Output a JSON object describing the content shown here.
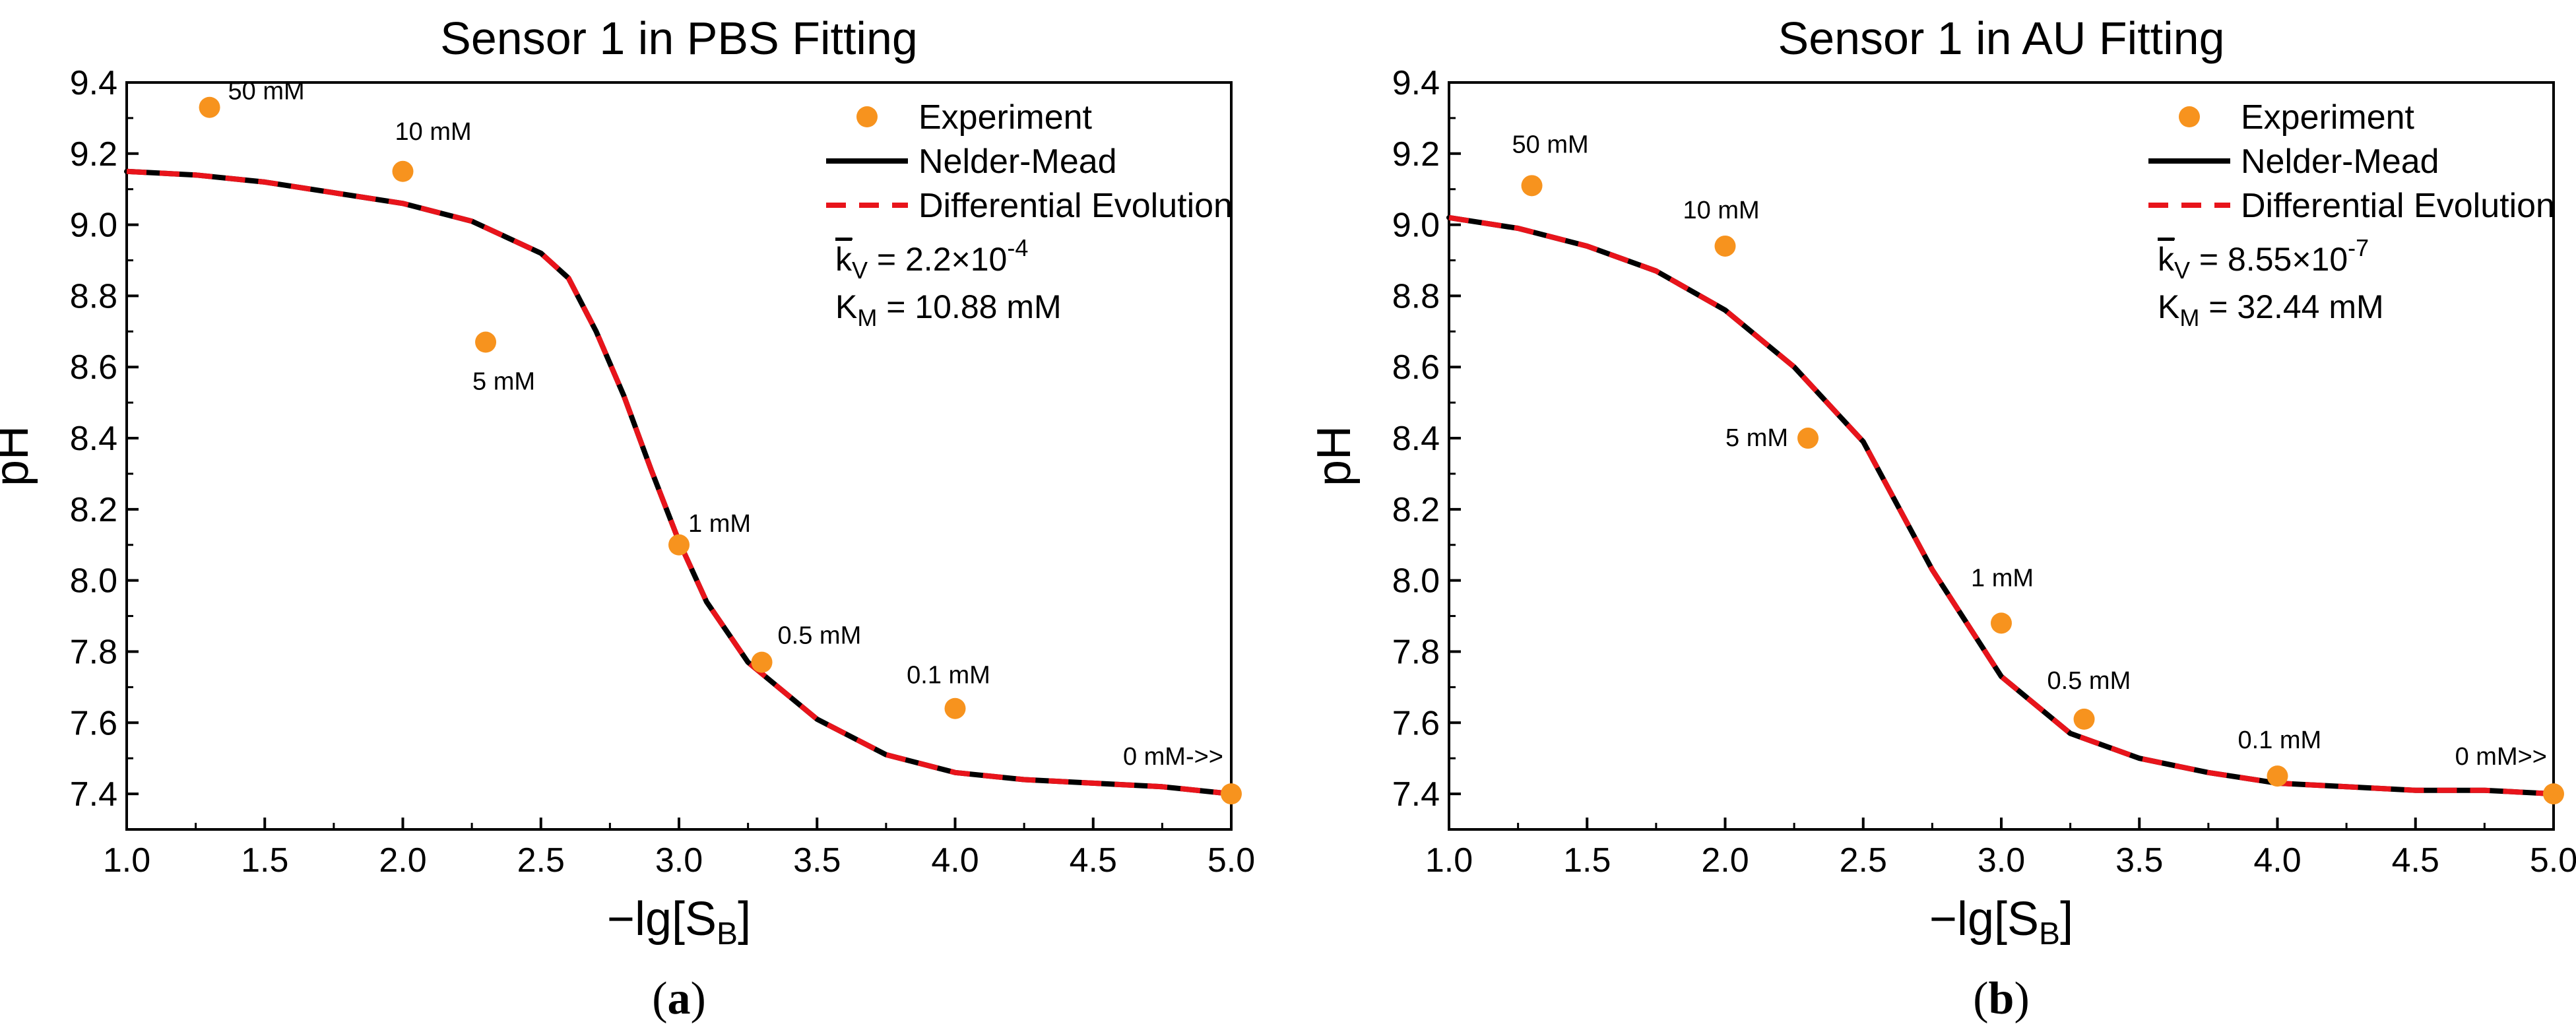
{
  "colors": {
    "experiment": "#F7931E",
    "nelder_mead": "#000000",
    "differential_evolution": "#E8141B"
  },
  "chart_data": [
    {
      "type": "scatter",
      "title": "Sensor 1 in PBS Fitting",
      "xlabel": "−lg[S",
      "xlabel_sub": "B",
      "xlabel_close": "]",
      "ylabel": "pH",
      "xlim": [
        1.0,
        5.0
      ],
      "ylim": [
        7.3,
        9.4
      ],
      "x_ticks": [
        "1.0",
        "1.5",
        "2.0",
        "2.5",
        "3.0",
        "3.5",
        "4.0",
        "4.5",
        "5.0"
      ],
      "y_ticks": [
        "7.4",
        "7.6",
        "7.8",
        "8.0",
        "8.2",
        "8.4",
        "8.6",
        "8.8",
        "9.0",
        "9.2",
        "9.4"
      ],
      "legend": [
        "Experiment",
        "Nelder-Mead",
        "Differential Evolution"
      ],
      "legend_position": "top-right",
      "annotation_kv_prefix": "k",
      "annotation_kv_sub": "V",
      "annotation_kv_value": " = 2.2×10",
      "annotation_kv_exp": "-4",
      "annotation_km_prefix": "K",
      "annotation_km_sub": "M",
      "annotation_km_value": " = 10.88 mM",
      "caption_open": "(",
      "caption_letter": "a",
      "caption_close": ")",
      "experiment": {
        "x": [
          1.3,
          2.0,
          2.3,
          3.0,
          3.3,
          4.0,
          5.0
        ],
        "y": [
          9.33,
          9.15,
          8.67,
          8.1,
          7.77,
          7.64,
          7.4
        ],
        "labels": [
          "50 mM",
          "10 mM",
          "5 mM",
          "1 mM",
          "0.5 mM",
          "0.1 mM",
          "0 mM->>"
        ]
      },
      "fit": {
        "x": [
          1.0,
          1.25,
          1.5,
          1.75,
          2.0,
          2.25,
          2.5,
          2.6,
          2.7,
          2.8,
          2.9,
          3.0,
          3.1,
          3.25,
          3.5,
          3.75,
          4.0,
          4.25,
          4.5,
          4.75,
          5.0
        ],
        "y": [
          9.15,
          9.14,
          9.12,
          9.09,
          9.06,
          9.01,
          8.92,
          8.85,
          8.7,
          8.52,
          8.31,
          8.11,
          7.94,
          7.77,
          7.61,
          7.51,
          7.46,
          7.44,
          7.43,
          7.42,
          7.4
        ]
      }
    },
    {
      "type": "scatter",
      "title": "Sensor 1 in AU Fitting",
      "xlabel": "−lg[S",
      "xlabel_sub": "B",
      "xlabel_close": "]",
      "ylabel": "pH",
      "xlim": [
        1.0,
        5.0
      ],
      "ylim": [
        7.3,
        9.4
      ],
      "x_ticks": [
        "1.0",
        "1.5",
        "2.0",
        "2.5",
        "3.0",
        "3.5",
        "4.0",
        "4.5",
        "5.0"
      ],
      "y_ticks": [
        "7.4",
        "7.6",
        "7.8",
        "8.0",
        "8.2",
        "8.4",
        "8.6",
        "8.8",
        "9.0",
        "9.2",
        "9.4"
      ],
      "legend": [
        "Experiment",
        "Nelder-Mead",
        "Differential Evolution"
      ],
      "legend_position": "top-right",
      "annotation_kv_prefix": "k",
      "annotation_kv_sub": "V",
      "annotation_kv_value": " = 8.55×10",
      "annotation_kv_exp": "-7",
      "annotation_km_prefix": "K",
      "annotation_km_sub": "M",
      "annotation_km_value": " = 32.44 mM",
      "caption_open": "(",
      "caption_letter": "b",
      "caption_close": ")",
      "experiment": {
        "x": [
          1.3,
          2.0,
          2.3,
          3.0,
          3.3,
          4.0,
          5.0
        ],
        "y": [
          9.11,
          8.94,
          8.4,
          7.88,
          7.61,
          7.45,
          7.4
        ],
        "labels": [
          "50 mM",
          "10 mM",
          "5 mM",
          "1 mM",
          "0.5 mM",
          "0.1 mM",
          "0 mM>>"
        ]
      },
      "fit": {
        "x": [
          1.0,
          1.25,
          1.5,
          1.75,
          2.0,
          2.25,
          2.5,
          2.75,
          3.0,
          3.25,
          3.5,
          3.75,
          4.0,
          4.25,
          4.5,
          4.75,
          5.0
        ],
        "y": [
          9.02,
          8.99,
          8.94,
          8.87,
          8.76,
          8.6,
          8.39,
          8.03,
          7.73,
          7.57,
          7.5,
          7.46,
          7.43,
          7.42,
          7.41,
          7.41,
          7.4
        ]
      }
    }
  ]
}
